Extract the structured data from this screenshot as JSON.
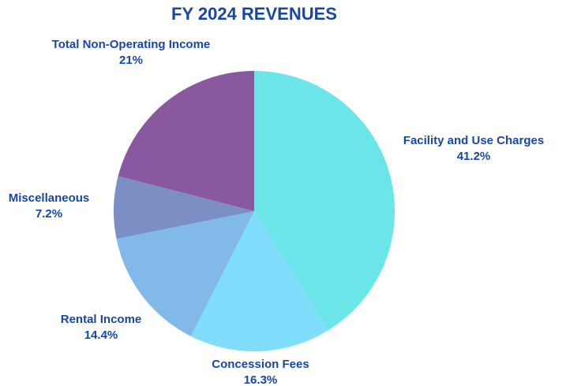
{
  "chart_data": {
    "type": "pie",
    "title": "FY 2024 REVENUES",
    "categories": [
      "Facility and Use Charges",
      "Concession Fees",
      "Rental Income",
      "Miscellaneous",
      "Total Non-Operating Income"
    ],
    "values": [
      41.2,
      16.3,
      14.4,
      7.2,
      21
    ],
    "value_labels": [
      "41.2%",
      "16.3%",
      "14.4%",
      "7.2%",
      "21%"
    ],
    "colors": [
      "#6be5e8",
      "#80defc",
      "#81b9e9",
      "#7b8fc4",
      "#8a58a0"
    ]
  }
}
